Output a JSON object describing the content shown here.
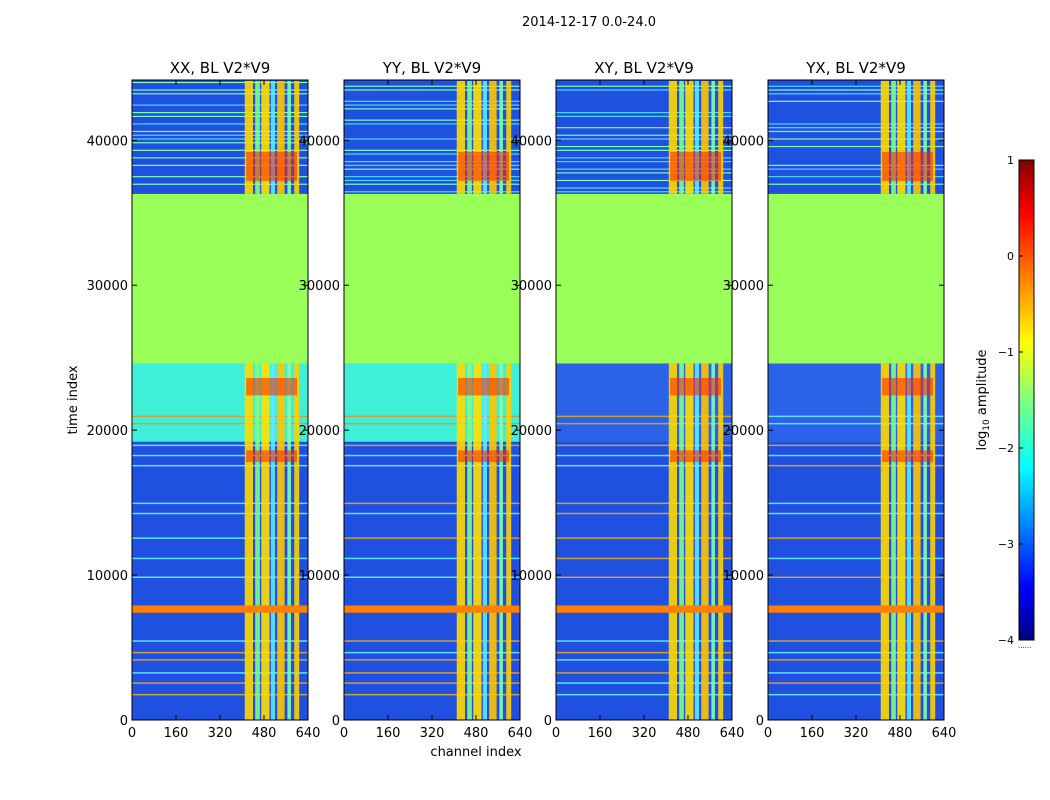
{
  "chart_data": {
    "type": "heatmap",
    "title": "2014-12-17 0.0-24.0",
    "xlabel": "channel index",
    "ylabel": "time index",
    "xlim": [
      0,
      640
    ],
    "ylim": [
      0,
      44160
    ],
    "xticks": [
      "0",
      "160",
      "320",
      "480",
      "640"
    ],
    "yticks": [
      "0",
      "10000",
      "20000",
      "30000",
      "40000"
    ],
    "colorbar": {
      "label": "log10 amplitude",
      "label_base": "log",
      "label_sub": "10",
      "label_rest": " amplitude",
      "range": [
        -4,
        1
      ],
      "ticks": [
        "1",
        "0",
        "−1",
        "−2",
        "−3",
        "−4"
      ],
      "extra_label": "......"
    },
    "colors": {
      "flagged": "#9bff5a",
      "background": "#1f50e0",
      "band": "#ff7f00",
      "strong": "#ff2000"
    },
    "regions": {
      "flagged_time_range": [
        24600,
        36300
      ],
      "active_channel_range": [
        410,
        640
      ],
      "band_time_range": [
        7400,
        7900
      ]
    },
    "panels": [
      {
        "title": "XX, BL V2*V9",
        "mid_band_level": "cyan"
      },
      {
        "title": "YY, BL V2*V9",
        "mid_band_level": "cyan"
      },
      {
        "title": "XY, BL V2*V9",
        "mid_band_level": "blue"
      },
      {
        "title": "YX, BL V2*V9",
        "mid_band_level": "blue"
      }
    ]
  }
}
